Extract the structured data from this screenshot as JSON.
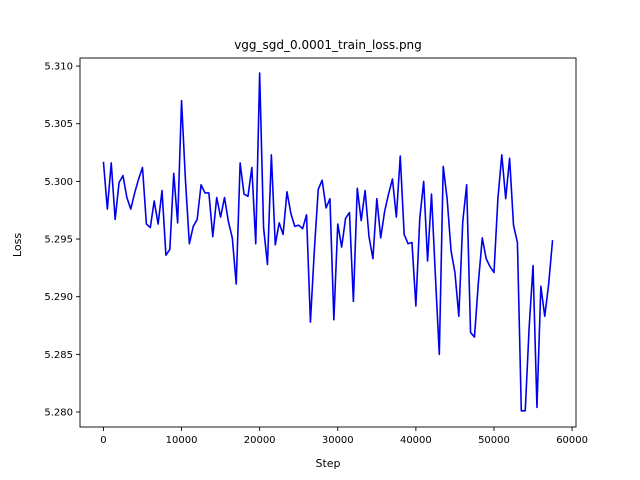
{
  "chart_data": {
    "type": "line",
    "title": "vgg_sgd_0.0001_train_loss.png",
    "xlabel": "Step",
    "ylabel": "Loss",
    "xlim": [
      -3000,
      60500
    ],
    "ylim": [
      5.2787,
      5.3107
    ],
    "xticks": [
      0,
      10000,
      20000,
      30000,
      40000,
      50000,
      60000
    ],
    "xtick_labels": [
      "0",
      "10000",
      "20000",
      "30000",
      "40000",
      "50000",
      "60000"
    ],
    "yticks": [
      5.28,
      5.285,
      5.29,
      5.295,
      5.3,
      5.305,
      5.31
    ],
    "ytick_labels": [
      "5.280",
      "5.285",
      "5.290",
      "5.295",
      "5.300",
      "5.305",
      "5.310"
    ],
    "grid": false,
    "series": [
      {
        "color": "#0000ee",
        "x": [
          0,
          500,
          1000,
          1500,
          2000,
          2500,
          3000,
          3500,
          4000,
          4500,
          5000,
          5500,
          6000,
          6500,
          7000,
          7500,
          8000,
          8500,
          9000,
          9500,
          10000,
          10500,
          11000,
          11500,
          12000,
          12500,
          13000,
          13500,
          14000,
          14500,
          15000,
          15500,
          16000,
          16500,
          17000,
          17500,
          18000,
          18500,
          19000,
          19500,
          20000,
          20500,
          21000,
          21500,
          22000,
          22500,
          23000,
          23500,
          24000,
          24500,
          25000,
          25500,
          26000,
          26500,
          27000,
          27500,
          28000,
          28500,
          29000,
          29500,
          30000,
          30500,
          31000,
          31500,
          32000,
          32500,
          33000,
          33500,
          34000,
          34500,
          35000,
          35500,
          36000,
          36500,
          37000,
          37500,
          38000,
          38500,
          39000,
          39500,
          40000,
          40500,
          41000,
          41500,
          42000,
          42500,
          43000,
          43500,
          44000,
          44500,
          45000,
          45500,
          46000,
          46500,
          47000,
          47500,
          48000,
          48500,
          49000,
          49500,
          50000,
          50500,
          51000,
          51500,
          52000,
          52500,
          53000,
          53500,
          54000,
          54500,
          55000,
          55500,
          56000,
          56500,
          57000,
          57500
        ],
        "y": [
          5.3017,
          5.2976,
          5.3016,
          5.2967,
          5.2999,
          5.3005,
          5.2986,
          5.2976,
          5.299,
          5.3002,
          5.3012,
          5.2963,
          5.296,
          5.2983,
          5.2963,
          5.2992,
          5.2936,
          5.2941,
          5.3007,
          5.2964,
          5.307,
          5.3001,
          5.2946,
          5.2961,
          5.2967,
          5.2997,
          5.299,
          5.299,
          5.2952,
          5.2986,
          5.2969,
          5.2986,
          5.2965,
          5.2951,
          5.2911,
          5.3016,
          5.2989,
          5.2987,
          5.3012,
          5.2946,
          5.3094,
          5.296,
          5.2928,
          5.3023,
          5.2945,
          5.2964,
          5.2954,
          5.2991,
          5.2972,
          5.2961,
          5.2962,
          5.2959,
          5.2971,
          5.2878,
          5.294,
          5.2993,
          5.3001,
          5.2977,
          5.2985,
          5.288,
          5.2963,
          5.2943,
          5.2968,
          5.2973,
          5.2896,
          5.2994,
          5.2966,
          5.2992,
          5.2952,
          5.2933,
          5.2985,
          5.2951,
          5.2974,
          5.2989,
          5.3002,
          5.2969,
          5.3022,
          5.2954,
          5.2946,
          5.2947,
          5.2892,
          5.2968,
          5.3,
          5.2931,
          5.2989,
          5.2918,
          5.285,
          5.3013,
          5.2985,
          5.294,
          5.2921,
          5.2883,
          5.2965,
          5.2997,
          5.2869,
          5.2865,
          5.2912,
          5.2951,
          5.2933,
          5.2926,
          5.2921,
          5.2985,
          5.3023,
          5.2985,
          5.302,
          5.2962,
          5.2947,
          5.2801,
          5.2801,
          5.2873,
          5.2927,
          5.2804,
          5.2909,
          5.2883,
          5.2911,
          5.2949
        ]
      }
    ]
  }
}
